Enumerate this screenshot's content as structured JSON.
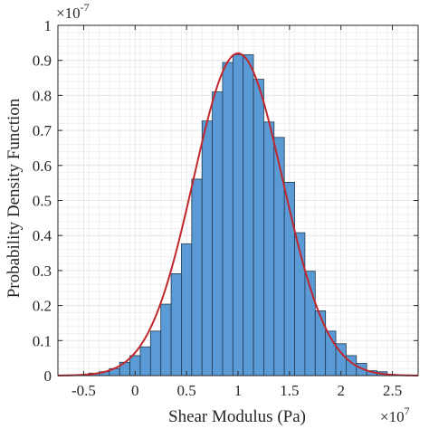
{
  "chart_data": {
    "type": "bar",
    "xlabel": "Shear Modulus (Pa)",
    "ylabel": "Probability Density Function",
    "x_exponent_label": "×10",
    "x_exponent_power": "7",
    "y_exponent_label": "×10",
    "y_exponent_power": "-7",
    "xlim": [
      -0.75,
      2.75
    ],
    "ylim": [
      0,
      1
    ],
    "x_ticks": [
      -0.5,
      0,
      0.5,
      1,
      1.5,
      2,
      2.5
    ],
    "x_tick_labels": [
      "-0.5",
      "0",
      "0.5",
      "1",
      "1.5",
      "2",
      "2.5"
    ],
    "y_ticks": [
      0,
      0.1,
      0.2,
      0.3,
      0.4,
      0.5,
      0.6,
      0.7,
      0.8,
      0.9,
      1
    ],
    "y_tick_labels": [
      "0",
      "0.1",
      "0.2",
      "0.3",
      "0.4",
      "0.5",
      "0.6",
      "0.7",
      "0.8",
      "0.9",
      "1"
    ],
    "grid": true,
    "minor_grid": true,
    "bin_width": 0.1,
    "bins": [
      {
        "x0": -0.65,
        "value": 0.001
      },
      {
        "x0": -0.55,
        "value": 0.003
      },
      {
        "x0": -0.45,
        "value": 0.007
      },
      {
        "x0": -0.35,
        "value": 0.011
      },
      {
        "x0": -0.25,
        "value": 0.02
      },
      {
        "x0": -0.15,
        "value": 0.038
      },
      {
        "x0": -0.05,
        "value": 0.057
      },
      {
        "x0": 0.05,
        "value": 0.082
      },
      {
        "x0": 0.15,
        "value": 0.127
      },
      {
        "x0": 0.25,
        "value": 0.204
      },
      {
        "x0": 0.35,
        "value": 0.291
      },
      {
        "x0": 0.45,
        "value": 0.376
      },
      {
        "x0": 0.55,
        "value": 0.561
      },
      {
        "x0": 0.65,
        "value": 0.727
      },
      {
        "x0": 0.75,
        "value": 0.81
      },
      {
        "x0": 0.85,
        "value": 0.894
      },
      {
        "x0": 0.95,
        "value": 0.916
      },
      {
        "x0": 1.05,
        "value": 0.916
      },
      {
        "x0": 1.15,
        "value": 0.846
      },
      {
        "x0": 1.25,
        "value": 0.724
      },
      {
        "x0": 1.35,
        "value": 0.68
      },
      {
        "x0": 1.45,
        "value": 0.552
      },
      {
        "x0": 1.55,
        "value": 0.408
      },
      {
        "x0": 1.65,
        "value": 0.298
      },
      {
        "x0": 1.75,
        "value": 0.185
      },
      {
        "x0": 1.85,
        "value": 0.127
      },
      {
        "x0": 1.95,
        "value": 0.091
      },
      {
        "x0": 2.05,
        "value": 0.057
      },
      {
        "x0": 2.15,
        "value": 0.035
      },
      {
        "x0": 2.25,
        "value": 0.014
      },
      {
        "x0": 2.35,
        "value": 0.011
      },
      {
        "x0": 2.45,
        "value": 0.003
      }
    ],
    "fit_curve": {
      "type": "normal",
      "mean": 1.0,
      "sigma": 0.435,
      "peak": 0.92
    },
    "colors": {
      "bar_fill": "#5b9bd5",
      "bar_edge": "#1f3a52",
      "curve": "#c1272d",
      "grid": "#e6e6e6",
      "axis": "#262626"
    }
  }
}
